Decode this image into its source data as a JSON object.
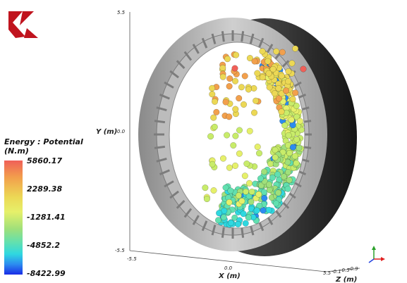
{
  "legend": {
    "title_line1": "Energy : Potential",
    "title_line2": "(N.m)",
    "ticks": [
      "5860.17",
      "2289.38",
      "-1281.41",
      "-4852.2",
      "-8422.99"
    ]
  },
  "axes": {
    "y_label": "Y (m)",
    "y_top": "5.5",
    "y_mid": "0.0",
    "y_bottom": "-5.5",
    "x_left": "-5.5",
    "x_mid": "0.0",
    "x_label": "X (m)",
    "z_ticks": [
      "5.5",
      "-0.1",
      "-0.5",
      "-0.9"
    ],
    "z_label": "Z (m)"
  },
  "colors": {
    "logo_red": "#c0141e",
    "drum_gray": "#a8a8a8",
    "drum_dark": "#2b2b2b"
  },
  "icons": {
    "logo": "logo-icon",
    "triad": "orientation-triad-icon"
  }
}
